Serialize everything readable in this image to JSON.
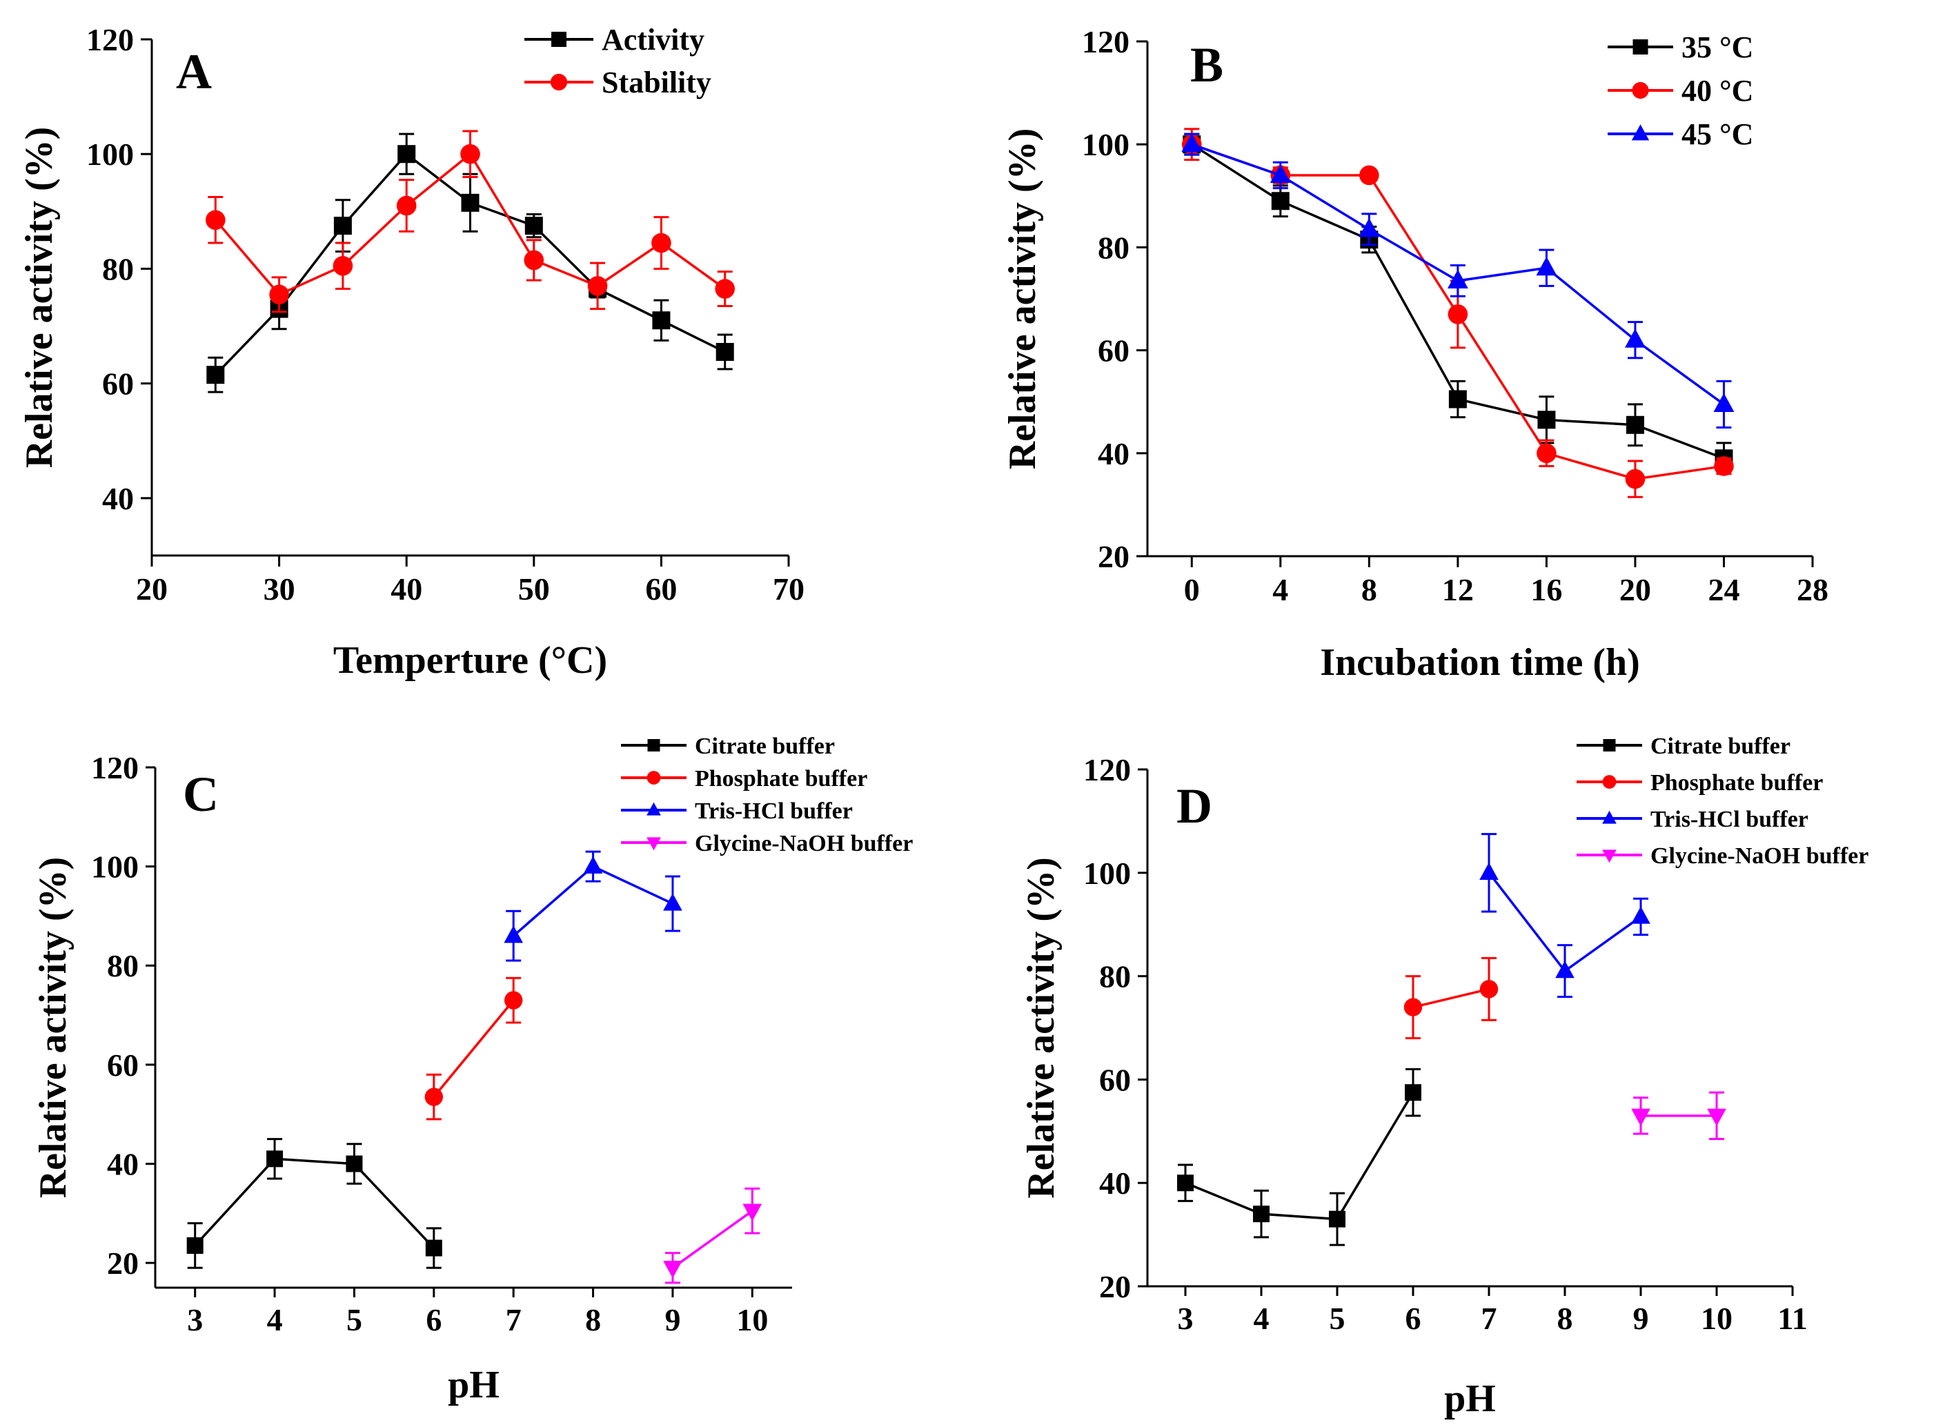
{
  "figure": {
    "panels": [
      {
        "letter": "A",
        "chart_data": {
          "type": "line",
          "title": "",
          "xlabel": "Temperture (°C)",
          "ylabel": "Relative activity (%)",
          "xlim": [
            20,
            70
          ],
          "ylim": [
            30,
            120
          ],
          "xticks": [
            20,
            30,
            40,
            50,
            60,
            70
          ],
          "yticks": [
            40,
            60,
            80,
            100,
            120
          ],
          "legend_position": "top-right",
          "series": [
            {
              "name": "Activity",
              "color": "#000000",
              "marker": "square",
              "x": [
                25,
                30,
                35,
                40,
                45,
                50,
                55,
                60,
                65
              ],
              "y": [
                61.5,
                73,
                87.5,
                100,
                91.5,
                87.5,
                76.5,
                71,
                65.5
              ],
              "err": [
                3,
                3.5,
                4.5,
                3.5,
                5,
                2,
                1.5,
                3.5,
                3
              ]
            },
            {
              "name": "Stability",
              "color": "#ff0000",
              "marker": "circle",
              "x": [
                25,
                30,
                35,
                40,
                45,
                50,
                55,
                60,
                65
              ],
              "y": [
                88.5,
                75.5,
                80.5,
                91,
                100,
                81.5,
                77,
                84.5,
                76.5
              ],
              "err": [
                4,
                3,
                4,
                4.5,
                4,
                3.5,
                4,
                4.5,
                3
              ]
            }
          ]
        }
      },
      {
        "letter": "B",
        "chart_data": {
          "type": "line",
          "title": "",
          "xlabel": "Incubation time (h)",
          "ylabel": "Relative activity (%)",
          "xlim": [
            -2,
            28
          ],
          "ylim": [
            20,
            120
          ],
          "xticks": [
            0,
            4,
            8,
            12,
            16,
            20,
            24,
            28
          ],
          "yticks": [
            20,
            40,
            60,
            80,
            100,
            120
          ],
          "legend_position": "top-right",
          "series": [
            {
              "name": "35 °C",
              "color": "#000000",
              "marker": "square",
              "x": [
                0,
                4,
                8,
                12,
                16,
                20,
                24
              ],
              "y": [
                100,
                89,
                81.5,
                50.5,
                46.5,
                45.5,
                39
              ],
              "err": [
                2,
                3,
                2.5,
                3.5,
                4.5,
                4,
                3
              ]
            },
            {
              "name": "40 °C",
              "color": "#ff0000",
              "marker": "circle",
              "x": [
                0,
                4,
                8,
                12,
                16,
                20,
                24
              ],
              "y": [
                100,
                94,
                94,
                67,
                40,
                35,
                37.5
              ],
              "err": [
                3,
                1.5,
                1,
                6.5,
                2.5,
                3.5,
                1.5
              ]
            },
            {
              "name": "45 °C",
              "color": "#0000ff",
              "marker": "triangle",
              "x": [
                0,
                4,
                8,
                12,
                16,
                20,
                24
              ],
              "y": [
                100,
                94,
                83.5,
                73.5,
                76,
                62,
                49.5
              ],
              "err": [
                2,
                2.5,
                3,
                3,
                3.5,
                3.5,
                4.5
              ]
            }
          ]
        }
      },
      {
        "letter": "C",
        "chart_data": {
          "type": "line",
          "title": "",
          "xlabel": "pH",
          "ylabel": "Relative activity (%)",
          "xlim": [
            2.5,
            10.5
          ],
          "ylim": [
            15,
            120
          ],
          "xticks": [
            3,
            4,
            5,
            6,
            7,
            8,
            9,
            10
          ],
          "yticks": [
            20,
            40,
            60,
            80,
            100,
            120
          ],
          "legend_position": "top-right",
          "series": [
            {
              "name": "Citrate buffer",
              "color": "#000000",
              "marker": "square",
              "x": [
                3,
                4,
                5,
                6
              ],
              "y": [
                23.5,
                41,
                40,
                23
              ],
              "err": [
                4.5,
                4,
                4,
                4
              ]
            },
            {
              "name": "Phosphate buffer",
              "color": "#ff0000",
              "marker": "circle",
              "x": [
                6,
                7
              ],
              "y": [
                53.5,
                73
              ],
              "err": [
                4.5,
                4.5
              ]
            },
            {
              "name": "Tris-HCl buffer",
              "color": "#0000ff",
              "marker": "triangle",
              "x": [
                7,
                8,
                9
              ],
              "y": [
                86,
                100,
                92.5
              ],
              "err": [
                5,
                3,
                5.5
              ]
            },
            {
              "name": "Glycine-NaOH buffer",
              "color": "#ff00ff",
              "marker": "triangle-down",
              "x": [
                9,
                10
              ],
              "y": [
                19,
                30.5
              ],
              "err": [
                3,
                4.5
              ]
            }
          ]
        }
      },
      {
        "letter": "D",
        "chart_data": {
          "type": "line",
          "title": "",
          "xlabel": "pH",
          "ylabel": "Relative activity (%)",
          "xlim": [
            2.5,
            11
          ],
          "ylim": [
            20,
            120
          ],
          "xticks": [
            3,
            4,
            5,
            6,
            7,
            8,
            9,
            10,
            11
          ],
          "yticks": [
            20,
            40,
            60,
            80,
            100,
            120
          ],
          "legend_position": "top-right",
          "series": [
            {
              "name": "Citrate buffer",
              "color": "#000000",
              "marker": "square",
              "x": [
                3,
                4,
                5,
                6
              ],
              "y": [
                40,
                34,
                33,
                57.5
              ],
              "err": [
                3.5,
                4.5,
                5,
                4.5
              ]
            },
            {
              "name": "Phosphate buffer",
              "color": "#ff0000",
              "marker": "circle",
              "x": [
                6,
                7
              ],
              "y": [
                74,
                77.5
              ],
              "err": [
                6,
                6
              ]
            },
            {
              "name": "Tris-HCl buffer",
              "color": "#0000ff",
              "marker": "triangle",
              "x": [
                7,
                8,
                9
              ],
              "y": [
                100,
                81,
                91.5
              ],
              "err": [
                7.5,
                5,
                3.5
              ]
            },
            {
              "name": "Glycine-NaOH buffer",
              "color": "#ff00ff",
              "marker": "triangle-down",
              "x": [
                9,
                10
              ],
              "y": [
                53,
                53
              ],
              "err": [
                3.5,
                4.5
              ]
            }
          ]
        }
      }
    ]
  }
}
